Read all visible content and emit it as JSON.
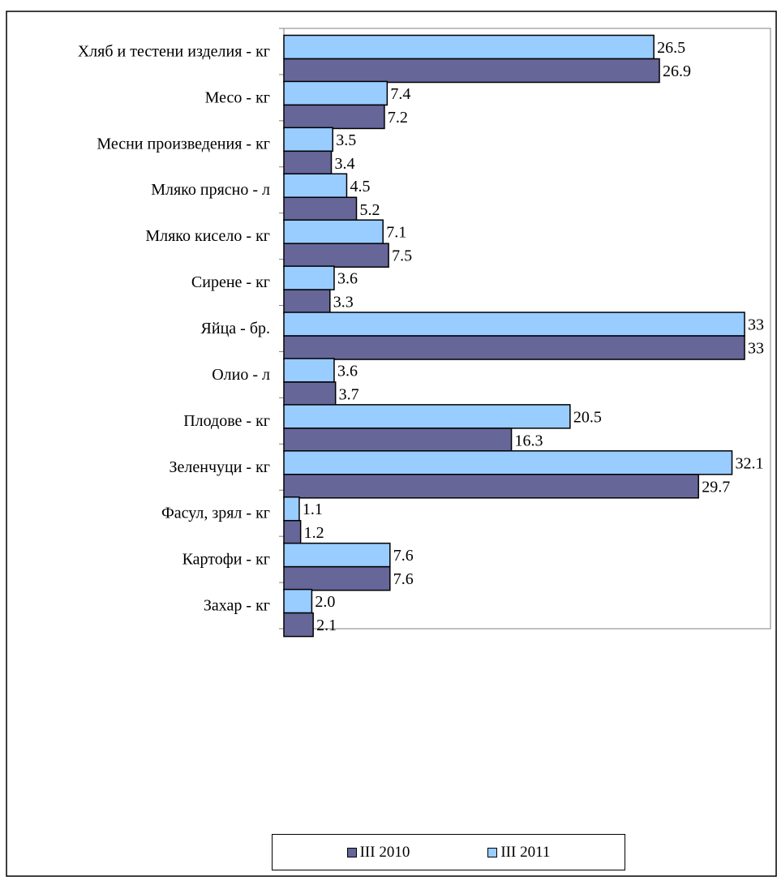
{
  "chart_data": {
    "type": "bar",
    "orientation": "horizontal",
    "title": "",
    "xlabel": "",
    "ylabel": "",
    "xlim": [
      0,
      33
    ],
    "grid": false,
    "legend_position": "bottom",
    "categories": [
      "Хляб и тестени изделия - кг",
      "Месо - кг",
      "Месни произведения  - кг",
      "Мляко прясно - л",
      "Мляко кисело - кг",
      "Сирене - кг",
      "Яйца - бр.",
      "Олио - л",
      "Плодове - кг",
      "Зеленчуци  - кг",
      "Фасул, зрял - кг",
      "Картофи - кг",
      "Захар - кг"
    ],
    "series": [
      {
        "name": "III 2011",
        "color": "#99ccff",
        "values": [
          26.5,
          7.4,
          3.5,
          4.5,
          7.1,
          3.6,
          33,
          3.6,
          20.5,
          32.1,
          1.1,
          7.6,
          2.0
        ],
        "labels": [
          "26.5",
          "7.4",
          "3.5",
          "4.5",
          "7.1",
          "3.6",
          "33",
          "3.6",
          "20.5",
          "32.1",
          "1.1",
          "7.6",
          "2.0"
        ]
      },
      {
        "name": "III 2010",
        "color": "#666699",
        "values": [
          26.9,
          7.2,
          3.4,
          5.2,
          7.5,
          3.3,
          33,
          3.7,
          16.3,
          29.7,
          1.2,
          7.6,
          2.1
        ],
        "labels": [
          "26.9",
          "7.2",
          "3.4",
          "5.2",
          "7.5",
          "3.3",
          "33",
          "3.7",
          "16.3",
          "29.7",
          "1.2",
          "7.6",
          "2.1"
        ]
      }
    ],
    "legend_order": [
      "III 2010",
      "III 2011"
    ]
  }
}
